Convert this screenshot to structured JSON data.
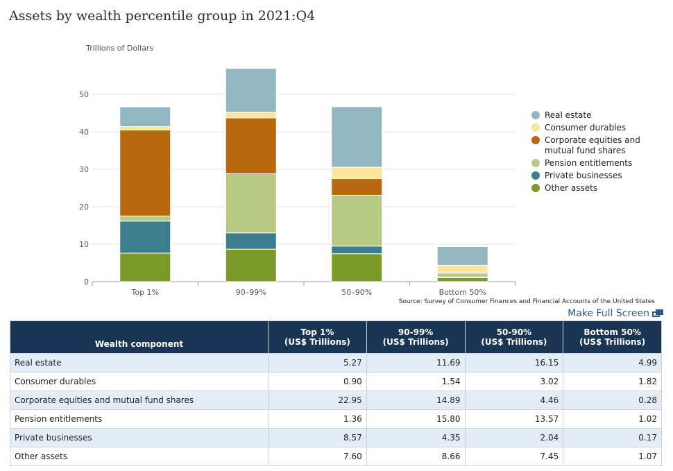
{
  "title": "Assets by wealth percentile group in 2021:Q4",
  "source": "Source: Survey of Consumer Finances and Financial Accounts of the United States",
  "fullscreen_label": "Make Full Screen",
  "chart_data": {
    "type": "bar",
    "stacked": true,
    "ylabel": "Trillions of Dollars",
    "ylim": [
      0,
      57
    ],
    "yticks": [
      0,
      10,
      20,
      30,
      40,
      50
    ],
    "grid": true,
    "legend_position": "right",
    "categories": [
      "Top 1%",
      "90–99%",
      "50–90%",
      "Bottom 50%"
    ],
    "series": [
      {
        "name": "Other assets",
        "color": "#7a9a2a",
        "values": [
          7.6,
          8.66,
          7.45,
          1.07
        ]
      },
      {
        "name": "Private businesses",
        "color": "#3d7e8e",
        "values": [
          8.57,
          4.35,
          2.04,
          0.17
        ]
      },
      {
        "name": "Pension entitlements",
        "color": "#b8c986",
        "values": [
          1.36,
          15.8,
          13.57,
          1.02
        ]
      },
      {
        "name": "Corporate equities and mutual fund shares",
        "color": "#b8680e",
        "values": [
          22.95,
          14.89,
          4.46,
          0.28
        ]
      },
      {
        "name": "Consumer durables",
        "color": "#fde49a",
        "values": [
          0.9,
          1.54,
          3.02,
          1.82
        ]
      },
      {
        "name": "Real estate",
        "color": "#93b7c1",
        "values": [
          5.27,
          11.69,
          16.15,
          4.99
        ]
      }
    ],
    "legend_order": [
      "Real estate",
      "Consumer durables",
      "Corporate equities and mutual fund shares",
      "Pension entitlements",
      "Private businesses",
      "Other assets"
    ],
    "legend_lines": {
      "Corporate equities and mutual fund shares": [
        "Corporate equities and",
        "mutual fund shares"
      ]
    }
  },
  "table": {
    "headers": [
      {
        "line1": "Wealth component",
        "line2": ""
      },
      {
        "line1": "Top 1%",
        "line2": "(US$ Trillions)"
      },
      {
        "line1": "90-99%",
        "line2": "(US$ Trillions)"
      },
      {
        "line1": "50-90%",
        "line2": "(US$ Trillions)"
      },
      {
        "line1": "Bottom 50%",
        "line2": "(US$ Trillions)"
      }
    ],
    "rows": [
      [
        "Real estate",
        "5.27",
        "11.69",
        "16.15",
        "4.99"
      ],
      [
        "Consumer durables",
        "0.90",
        "1.54",
        "3.02",
        "1.82"
      ],
      [
        "Corporate equities and mutual fund shares",
        "22.95",
        "14.89",
        "4.46",
        "0.28"
      ],
      [
        "Pension entitlements",
        "1.36",
        "15.80",
        "13.57",
        "1.02"
      ],
      [
        "Private businesses",
        "8.57",
        "4.35",
        "2.04",
        "0.17"
      ],
      [
        "Other assets",
        "7.60",
        "8.66",
        "7.45",
        "1.07"
      ]
    ]
  }
}
